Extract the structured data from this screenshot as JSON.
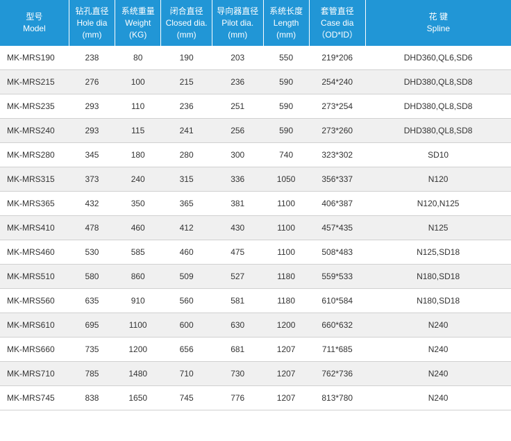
{
  "table": {
    "header_bg": "#2196d6",
    "header_fg": "#ffffff",
    "row_even_bg": "#f0f0f0",
    "row_odd_bg": "#ffffff",
    "border_color": "#d0d0d0",
    "text_color": "#333333",
    "font_size_header": 12,
    "font_size_body": 12,
    "columns": [
      {
        "cn": "型号",
        "en": "Model"
      },
      {
        "cn": "钻孔直径",
        "en": "Hole dia",
        "unit": "(mm)"
      },
      {
        "cn": "系统重量",
        "en": "Weight",
        "unit": "(KG)"
      },
      {
        "cn": "闭合直径",
        "en": "Closed dia.",
        "unit": "(mm)"
      },
      {
        "cn": "导向器直径",
        "en": "Pilot dia.",
        "unit": "(mm)"
      },
      {
        "cn": "系统长度",
        "en": "Length",
        "unit": "(mm)"
      },
      {
        "cn": "套管直径",
        "en": "Case dia",
        "unit": "（OD*ID）"
      },
      {
        "cn": "花 键",
        "en": "Spline"
      }
    ],
    "rows": [
      [
        "MK-MRS190",
        "238",
        "80",
        "190",
        "203",
        "550",
        "219*206",
        "DHD360,QL6,SD6"
      ],
      [
        "MK-MRS215",
        "276",
        "100",
        "215",
        "236",
        "590",
        "254*240",
        "DHD380,QL8,SD8"
      ],
      [
        "MK-MRS235",
        "293",
        "110",
        "236",
        "251",
        "590",
        "273*254",
        "DHD380,QL8,SD8"
      ],
      [
        "MK-MRS240",
        "293",
        "115",
        "241",
        "256",
        "590",
        "273*260",
        "DHD380,QL8,SD8"
      ],
      [
        "MK-MRS280",
        "345",
        "180",
        "280",
        "300",
        "740",
        "323*302",
        "SD10"
      ],
      [
        "MK-MRS315",
        "373",
        "240",
        "315",
        "336",
        "1050",
        "356*337",
        "N120"
      ],
      [
        "MK-MRS365",
        "432",
        "350",
        "365",
        "381",
        "1100",
        "406*387",
        "N120,N125"
      ],
      [
        "MK-MRS410",
        "478",
        "460",
        "412",
        "430",
        "1100",
        "457*435",
        "N125"
      ],
      [
        "MK-MRS460",
        "530",
        "585",
        "460",
        "475",
        "1100",
        "508*483",
        "N125,SD18"
      ],
      [
        "MK-MRS510",
        "580",
        "860",
        "509",
        "527",
        "1180",
        "559*533",
        "N180,SD18"
      ],
      [
        "MK-MRS560",
        "635",
        "910",
        "560",
        "581",
        "1180",
        "610*584",
        "N180,SD18"
      ],
      [
        "MK-MRS610",
        "695",
        "1100",
        "600",
        "630",
        "1200",
        "660*632",
        "N240"
      ],
      [
        "MK-MRS660",
        "735",
        "1200",
        "656",
        "681",
        "1207",
        "711*685",
        "N240"
      ],
      [
        "MK-MRS710",
        "785",
        "1480",
        "710",
        "730",
        "1207",
        "762*736",
        "N240"
      ],
      [
        "MK-MRS745",
        "838",
        "1650",
        "745",
        "776",
        "1207",
        "813*780",
        "N240"
      ]
    ]
  }
}
